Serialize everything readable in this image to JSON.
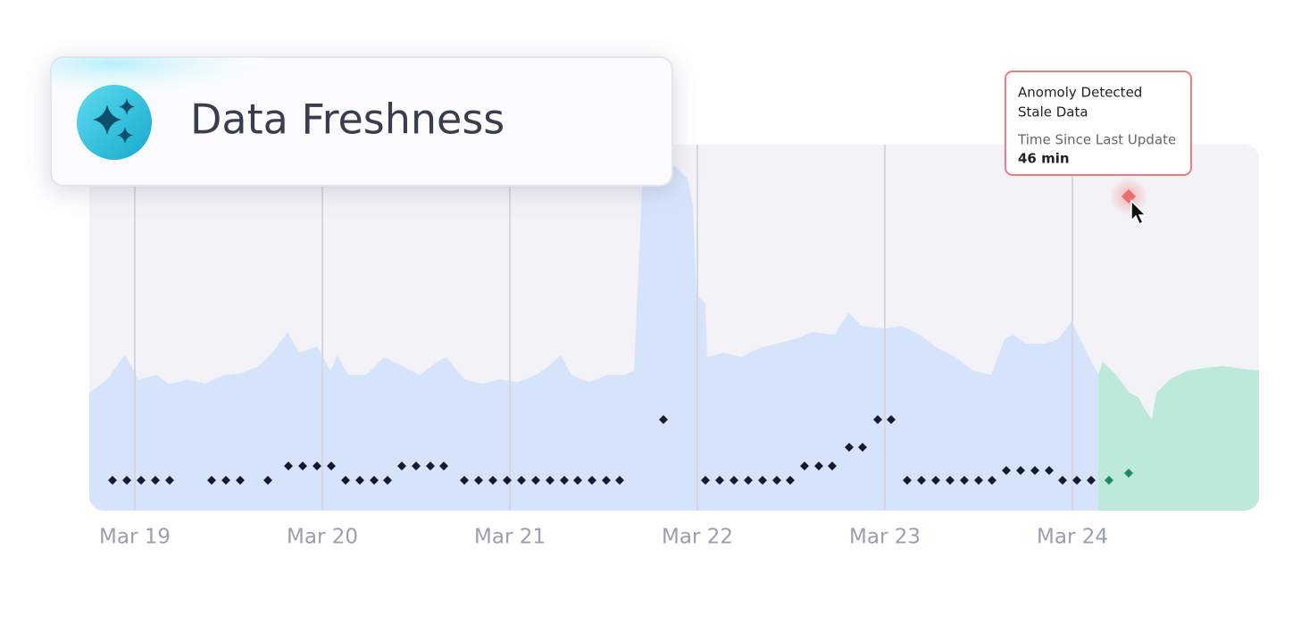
{
  "card": {
    "title": "Data Freshness"
  },
  "tooltip": {
    "heading": "Anomoly Detected",
    "status": "Stale Data",
    "metric_label": "Time Since Last Update",
    "metric_value": "46 min"
  },
  "x_axis": {
    "labels": [
      "Mar 19",
      "Mar 20",
      "Mar 21",
      "Mar 22",
      "Mar 23",
      "Mar 24"
    ]
  }
}
